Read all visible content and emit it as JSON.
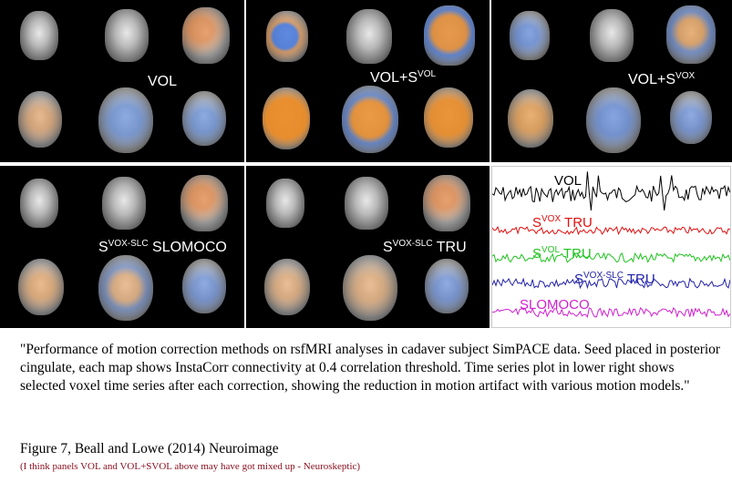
{
  "panels": [
    {
      "id": "vol",
      "label_main": "VOL",
      "label_sup": "",
      "label_tail": ""
    },
    {
      "id": "vol-svol",
      "label_main": "VOL+S",
      "label_sup": "VOL",
      "label_tail": ""
    },
    {
      "id": "vol-svox",
      "label_main": "VOL+S",
      "label_sup": "VOX",
      "label_tail": ""
    },
    {
      "id": "svoxslc-slomoco",
      "label_main": "S",
      "label_sup": "VOX-SLC",
      "label_tail": " SLOMOCO"
    },
    {
      "id": "svoxslc-tru",
      "label_main": "S",
      "label_sup": "VOX-SLC",
      "label_tail": " TRU"
    }
  ],
  "timeseries": {
    "labels": [
      {
        "main": "VOL",
        "sup": "",
        "tail": "",
        "color": "#000000"
      },
      {
        "main": "S",
        "sup": "VOX",
        "tail": " TRU",
        "color": "#e01010"
      },
      {
        "main": "S",
        "sup": "VOL",
        "tail": " TRU",
        "color": "#22c422"
      },
      {
        "main": "S",
        "sup": "VOX-SLC",
        "tail": " TRU",
        "color": "#2222aa"
      },
      {
        "main": "SLOMOCO",
        "sup": "",
        "tail": "",
        "color": "#d020d0"
      }
    ]
  },
  "caption": "\"Performance of motion correction methods on rsfMRI analyses in cadaver subject SimPACE data. Seed placed in posterior cingulate, each map shows InstaCorr connectivity at 0.4 correlation threshold. Time series plot in lower right shows selected voxel time series after each correction, showing the reduction in motion artifact with various motion models.\"",
  "figure_ref": "Figure 7, Beall and Lowe (2014) Neuroimage",
  "note": "(I think panels VOL and VOL+SVOL above may have got mixed up - Neuroskeptic)"
}
